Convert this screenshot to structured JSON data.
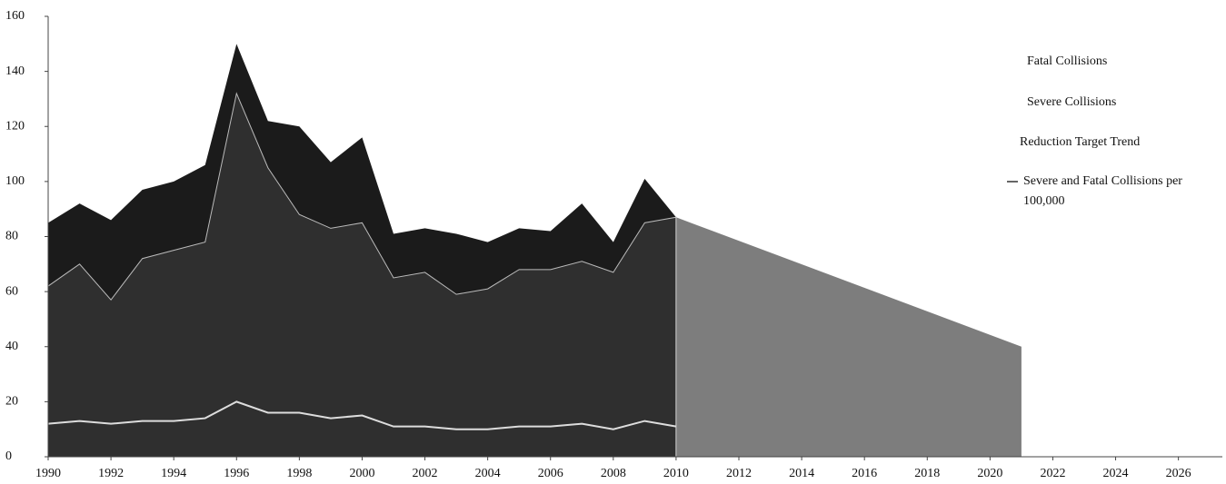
{
  "chart_data": {
    "type": "area",
    "x": [
      1990,
      1991,
      1992,
      1993,
      1994,
      1995,
      1996,
      1997,
      1998,
      1999,
      2000,
      2001,
      2002,
      2003,
      2004,
      2005,
      2006,
      2007,
      2008,
      2009,
      2010
    ],
    "series": [
      {
        "name": "Fatal Collisions",
        "color": "#1b1b1b",
        "values": [
          85,
          92,
          86,
          97,
          100,
          106,
          150,
          122,
          120,
          107,
          116,
          81,
          83,
          81,
          78,
          83,
          82,
          92,
          78,
          101,
          87
        ]
      },
      {
        "name": "Severe Collisions",
        "color": "#2f2f2f",
        "values": [
          62,
          70,
          57,
          72,
          75,
          78,
          132,
          105,
          88,
          83,
          85,
          65,
          67,
          59,
          61,
          68,
          68,
          71,
          67,
          85,
          87
        ]
      },
      {
        "name": "Severe and Fatal Collisions per 100,000",
        "color": "#dddddd",
        "type": "line",
        "values": [
          12,
          13,
          12,
          13,
          13,
          14,
          20,
          16,
          16,
          14,
          15,
          11,
          11,
          10,
          10,
          11,
          11,
          12,
          10,
          13,
          11
        ]
      }
    ],
    "target": {
      "name": "Reduction Target Trend",
      "color": "#7d7d7d",
      "x": [
        2010,
        2021
      ],
      "values": [
        87,
        40
      ]
    },
    "xlim": [
      1990,
      2027.4
    ],
    "xticks": [
      1990,
      1992,
      1994,
      1996,
      1998,
      2000,
      2002,
      2004,
      2006,
      2008,
      2010,
      2012,
      2014,
      2016,
      2018,
      2020,
      2022,
      2024,
      2026
    ],
    "ylim": [
      0,
      160
    ],
    "yticks": [
      0,
      20,
      40,
      60,
      80,
      100,
      120,
      140,
      160
    ]
  }
}
